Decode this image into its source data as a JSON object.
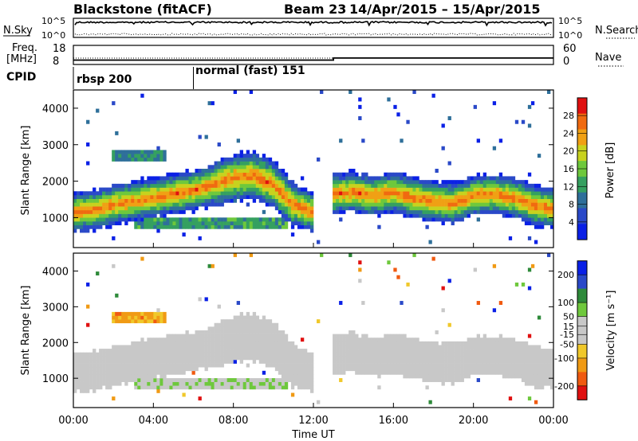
{
  "header": {
    "title": "Blackstone (fitACF)",
    "beam": "Beam 23",
    "date_range": "14/Apr/2015 – 15/Apr/2015"
  },
  "status_panels": {
    "nsky_label": "N.Sky",
    "nsearch_label": "N.Search",
    "nsky_ticks": [
      "10^5",
      "10^0"
    ],
    "nsearch_ticks": [
      "10^5",
      "10^0"
    ],
    "freq_label_line1": "Freq.",
    "freq_label_line2": "[MHz]",
    "freq_ticks": [
      "18",
      "8"
    ],
    "nave_label": "Nave",
    "nave_ticks": [
      "60",
      "0"
    ],
    "freq_mhz_before": 10.3,
    "freq_mhz_after": 11.4,
    "freq_step_time_h": 13.0,
    "nave_before": 20,
    "nave_after": 20,
    "cpid_label": "CPID",
    "cpid_segments": [
      {
        "name": "rbsp 200",
        "start_h": 0
      },
      {
        "name": "normal (fast) 151",
        "start_h": 6
      }
    ]
  },
  "colors": {
    "power_scale": [
      "#0a20e6",
      "#2a49c8",
      "#2e6f9a",
      "#35a060",
      "#6ec83c",
      "#c8d21e",
      "#f0a014",
      "#f06a10",
      "#e01010"
    ],
    "velocity_scale": [
      "#e01010",
      "#f05a10",
      "#f09a14",
      "#f0c82a",
      "#c8c8c8",
      "#c8c8c8",
      "#6ec83c",
      "#2e8a3a",
      "#2a49c8",
      "#0a20e6"
    ]
  },
  "chart_data": [
    {
      "type": "heatmap",
      "name": "power",
      "ylabel": "Slant Range [km]",
      "xlabel": "",
      "xlim": [
        0,
        24
      ],
      "ylim": [
        180,
        4500
      ],
      "yticks": [
        "1000",
        "2000",
        "3000",
        "4000"
      ],
      "colorbar_label": "Power [dB]",
      "colorbar_ticks": [
        "28",
        "24",
        "20",
        "16",
        "12",
        "8",
        "4"
      ],
      "colorbar_range": [
        0,
        32
      ],
      "features": [
        {
          "desc": "main band",
          "points": [
            [
              0,
              1150
            ],
            [
              1,
              1200
            ],
            [
              2,
              1350
            ],
            [
              3,
              1450
            ],
            [
              4,
              1550
            ],
            [
              5,
              1650
            ],
            [
              6,
              1750
            ],
            [
              7,
              1900
            ],
            [
              8,
              2100
            ],
            [
              9,
              2150
            ],
            [
              10,
              1900
            ],
            [
              11,
              1350
            ],
            [
              12,
              1150
            ]
          ],
          "core_db": 26
        },
        {
          "desc": "evening band",
          "points": [
            [
              13,
              1650
            ],
            [
              14,
              1700
            ],
            [
              15,
              1600
            ],
            [
              16,
              1700
            ],
            [
              17,
              1550
            ],
            [
              18,
              1450
            ],
            [
              19,
              1400
            ],
            [
              20,
              1600
            ],
            [
              21,
              1650
            ],
            [
              22,
              1550
            ],
            [
              23,
              1350
            ],
            [
              24,
              1250
            ]
          ],
          "core_db": 25
        },
        {
          "desc": "near-range patch",
          "t_range": [
            3,
            10.7
          ],
          "r_range": [
            650,
            1050
          ],
          "core_db": 17
        },
        {
          "desc": "far-range patch",
          "t_range": [
            2,
            4.7
          ],
          "r_range": [
            2500,
            2850
          ],
          "core_db": 12
        }
      ]
    },
    {
      "type": "heatmap",
      "name": "velocity",
      "ylabel": "Slant Range [km]",
      "xlabel": "Time UT",
      "xlim": [
        0,
        24
      ],
      "ylim": [
        180,
        4500
      ],
      "yticks": [
        "1000",
        "2000",
        "3000",
        "4000"
      ],
      "xticks": [
        "00:00",
        "04:00",
        "08:00",
        "12:00",
        "16:00",
        "20:00",
        "00:00"
      ],
      "colorbar_label": "Velocity [m s⁻¹]",
      "colorbar_ticks": [
        "200",
        "100",
        "50",
        "15",
        "-15",
        "-50",
        "-100",
        "-200"
      ],
      "colorbar_range": [
        -250,
        250
      ],
      "features": [
        {
          "desc": "ground scatter band",
          "velocity": 0
        },
        {
          "desc": "near-range patch",
          "t_range": [
            3,
            10.7
          ],
          "r_range": [
            650,
            1050
          ],
          "velocity": 45
        },
        {
          "desc": "far-range patch",
          "t_range": [
            2,
            4.7
          ],
          "r_range": [
            2500,
            2850
          ],
          "velocity": -120
        }
      ]
    }
  ]
}
